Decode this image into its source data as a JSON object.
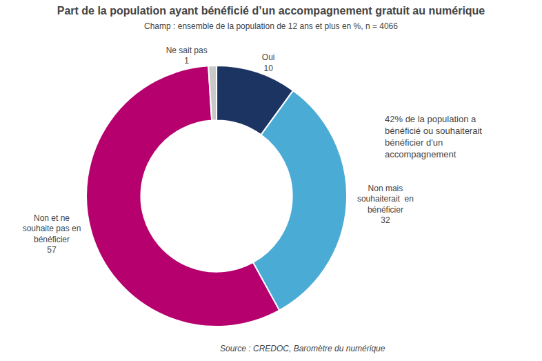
{
  "chart_data": {
    "type": "pie",
    "title": "Part de la population ayant bénéficié d’un accompagnement gratuit au numérique",
    "subtitle": "Champ : ensemble de la population de 12 ans et plus en %, n = 4066",
    "source": "Source : CREDOC, Baromètre du numérique",
    "annotation": "42% de la population a\nbénéficié ou souhaiterait\nbénéficier d'un\naccompagnement",
    "categories": [
      "Oui",
      "Non mais\nsouhaiterait  en\nbénéficier",
      "Non et ne\nsouhaite pas en\nbénéficier",
      "Ne sait pas"
    ],
    "values": [
      10,
      32,
      57,
      1
    ],
    "colors": [
      "#1c3461",
      "#4aabd5",
      "#b5006e",
      "#c8c8c8"
    ],
    "data_labels": true
  }
}
